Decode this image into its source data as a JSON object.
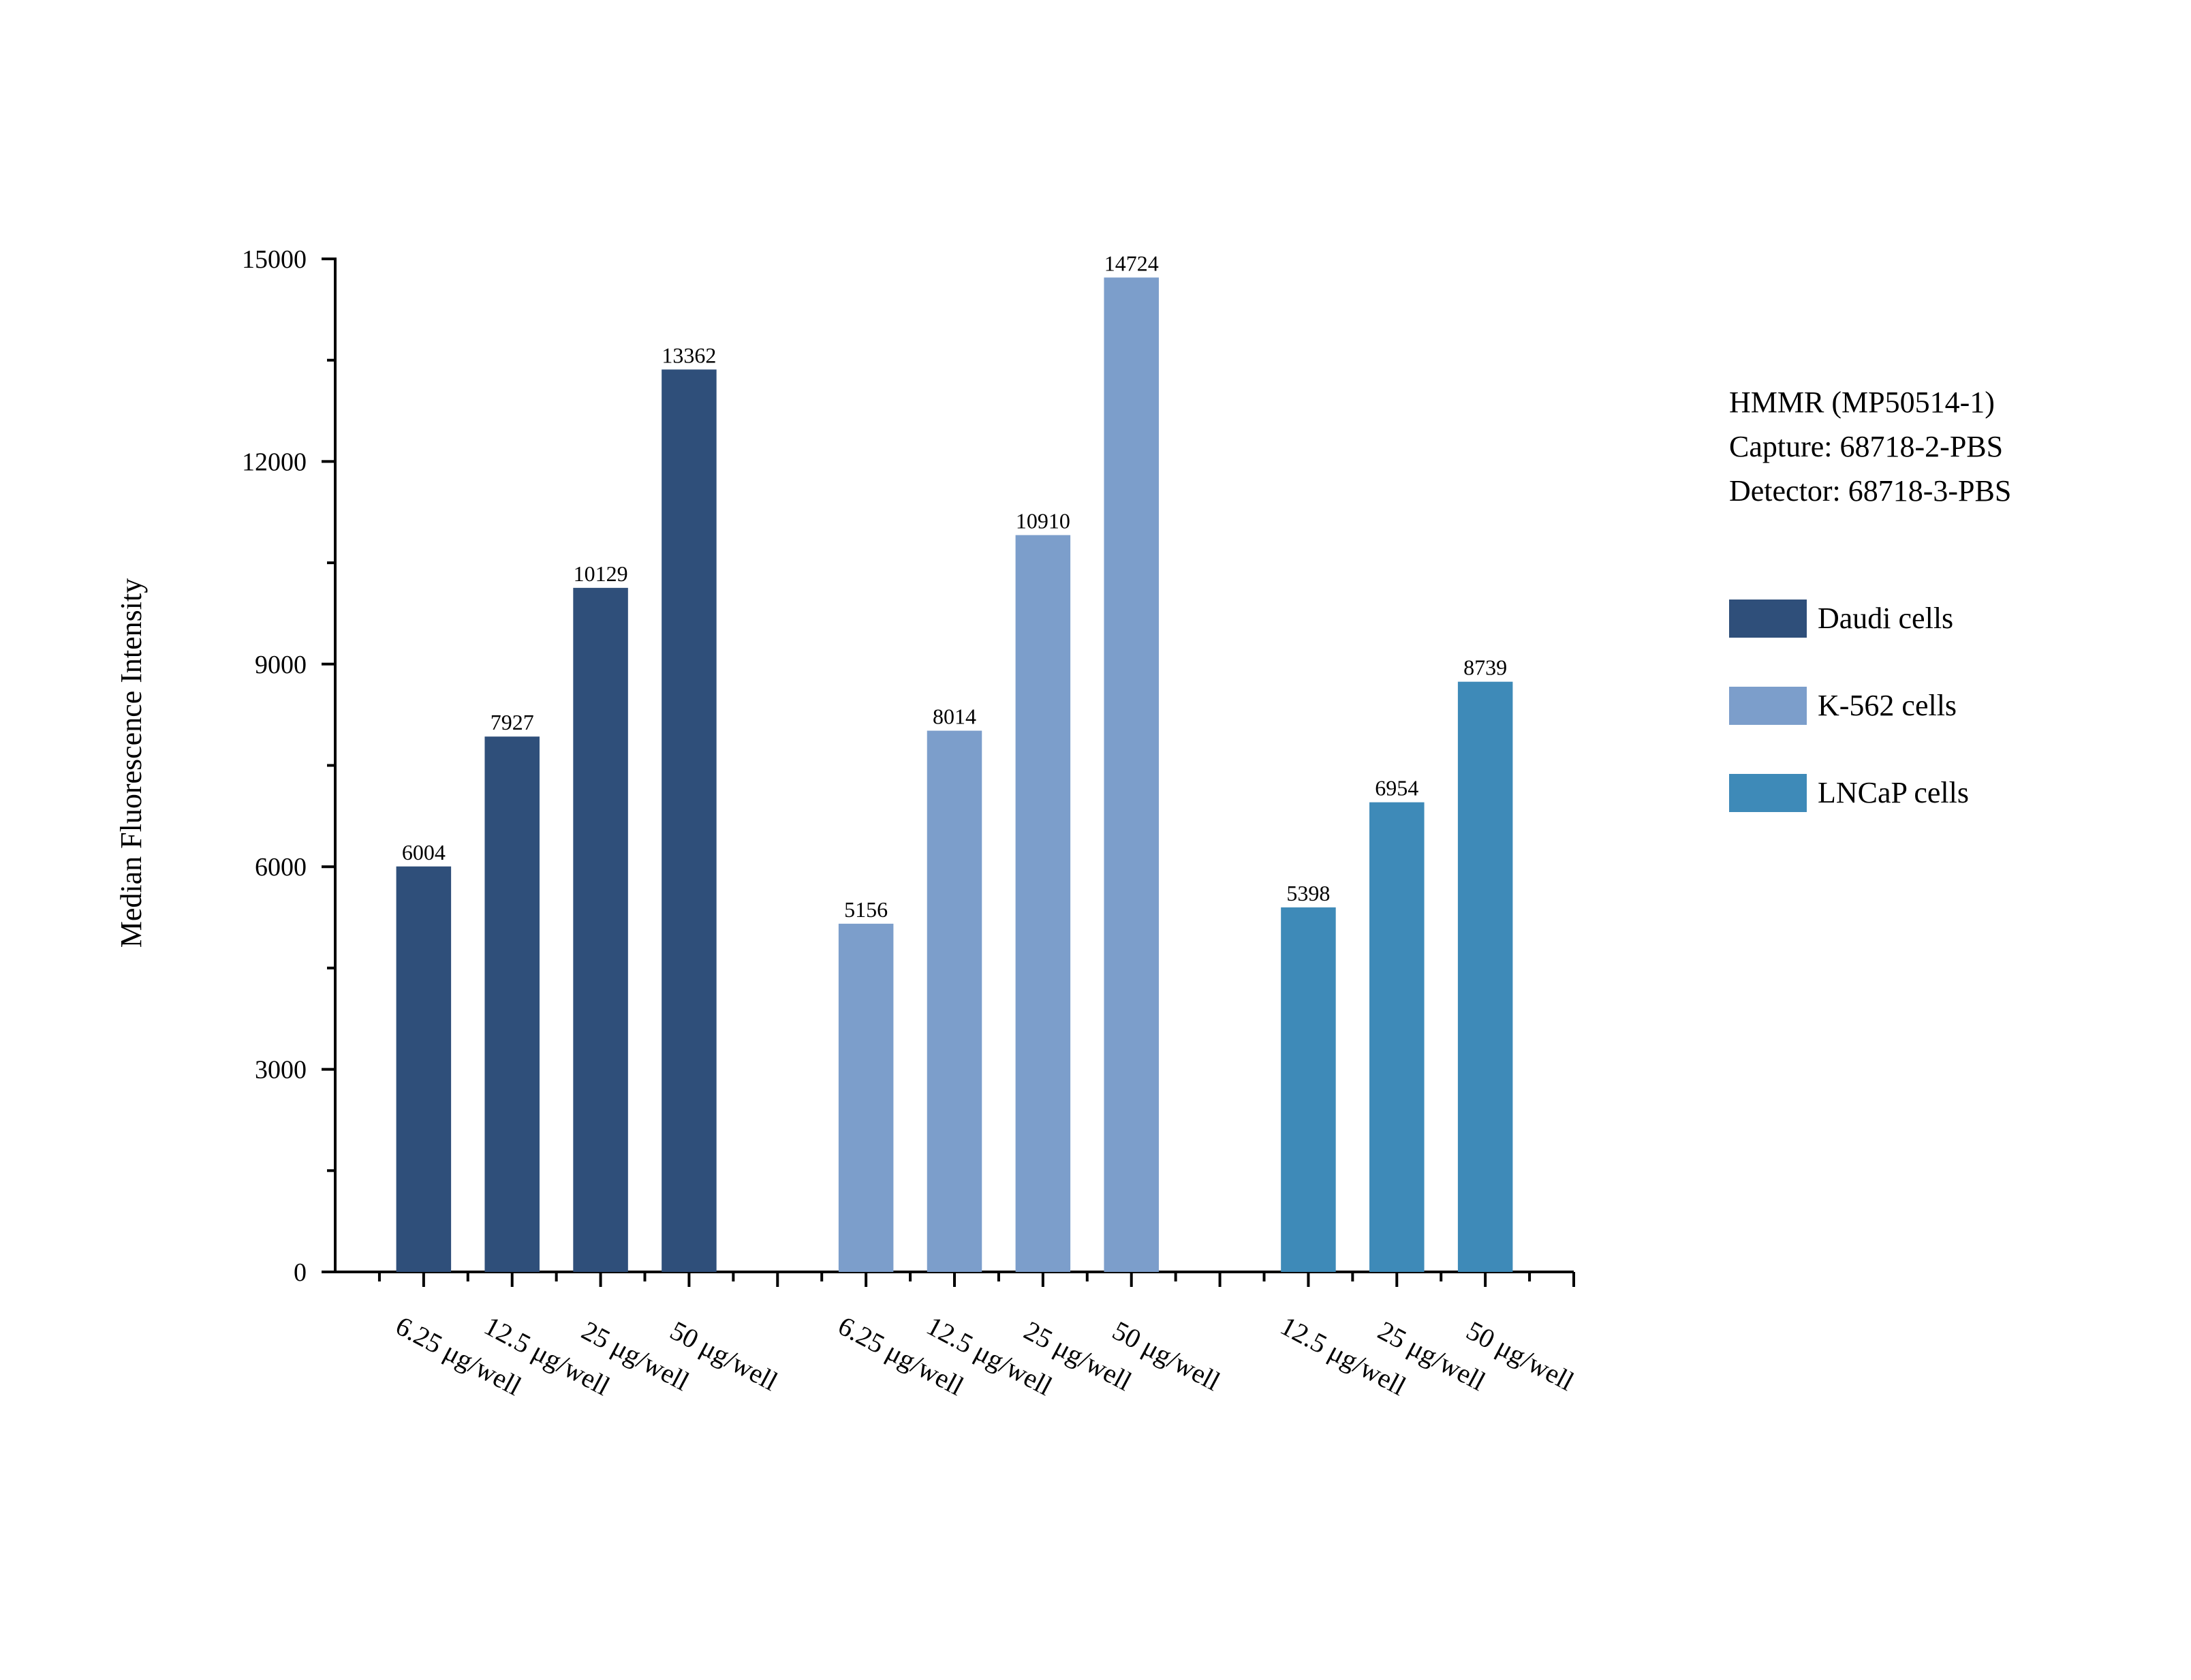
{
  "chart_data": {
    "type": "bar",
    "xlabel": "",
    "ylabel": "Median Fluorescence Intensity",
    "ylim": [
      0,
      15000
    ],
    "yticks": [
      0,
      3000,
      6000,
      9000,
      12000,
      15000
    ],
    "grid": false,
    "legend_position": "right",
    "annotation": [
      "HMMR (MP50514-1)",
      "Capture: 68718-2-PBS",
      "Detector: 68718-3-PBS"
    ],
    "series": [
      {
        "name": "Daudi cells",
        "color": "#2f4f7a",
        "categories": [
          "6.25 μg/well",
          "12.5 μg/well",
          "25 μg/well",
          "50 μg/well"
        ],
        "values": [
          6004,
          7927,
          10129,
          13362
        ]
      },
      {
        "name": "K-562 cells",
        "color": "#7c9ecb",
        "categories": [
          "6.25 μg/well",
          "12.5 μg/well",
          "25 μg/well",
          "50 μg/well"
        ],
        "values": [
          5156,
          8014,
          10910,
          14724
        ]
      },
      {
        "name": "LNCaP cells",
        "color": "#3e8ab8",
        "categories": [
          "12.5 μg/well",
          "25 μg/well",
          "50 μg/well"
        ],
        "values": [
          5398,
          6954,
          8739
        ]
      }
    ]
  }
}
